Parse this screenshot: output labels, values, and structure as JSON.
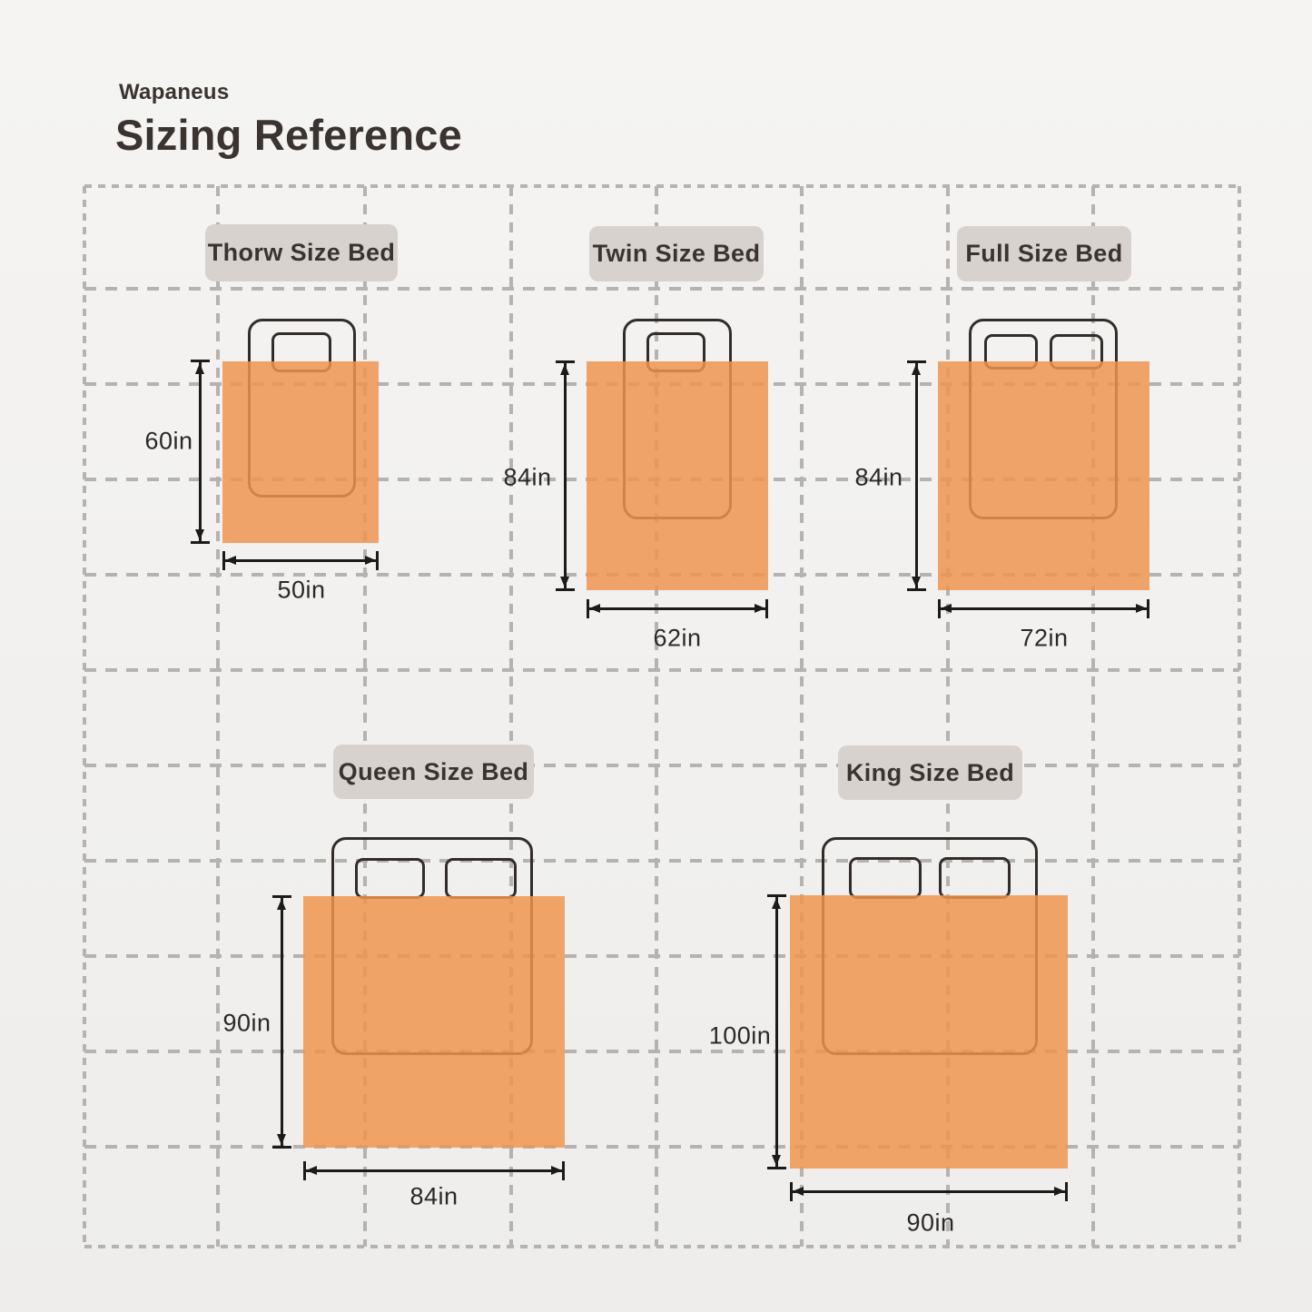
{
  "header": {
    "brand": "Wapaneus",
    "title": "Sizing Reference"
  },
  "beds": [
    {
      "id": "throw",
      "label": "Thorw Size Bed",
      "height_label": "60in",
      "width_label": "50in",
      "height_in": 60,
      "width_in": 50
    },
    {
      "id": "twin",
      "label": "Twin Size Bed",
      "height_label": "84in",
      "width_label": "62in",
      "height_in": 84,
      "width_in": 62
    },
    {
      "id": "full",
      "label": "Full Size Bed",
      "height_label": "84in",
      "width_label": "72in",
      "height_in": 84,
      "width_in": 72
    },
    {
      "id": "queen",
      "label": "Queen Size Bed",
      "height_label": "90in",
      "width_label": "84in",
      "height_in": 90,
      "width_in": 84
    },
    {
      "id": "king",
      "label": "King Size Bed",
      "height_label": "100in",
      "width_label": "90in",
      "height_in": 100,
      "width_in": 90
    }
  ],
  "colors": {
    "background": "#F2F1EF",
    "blanket": "#EF944E",
    "badge": "#D8D2CE",
    "grid_line": "#B5B2AF",
    "dimension_ink": "#1D1B1A",
    "text": "#3A332F"
  }
}
